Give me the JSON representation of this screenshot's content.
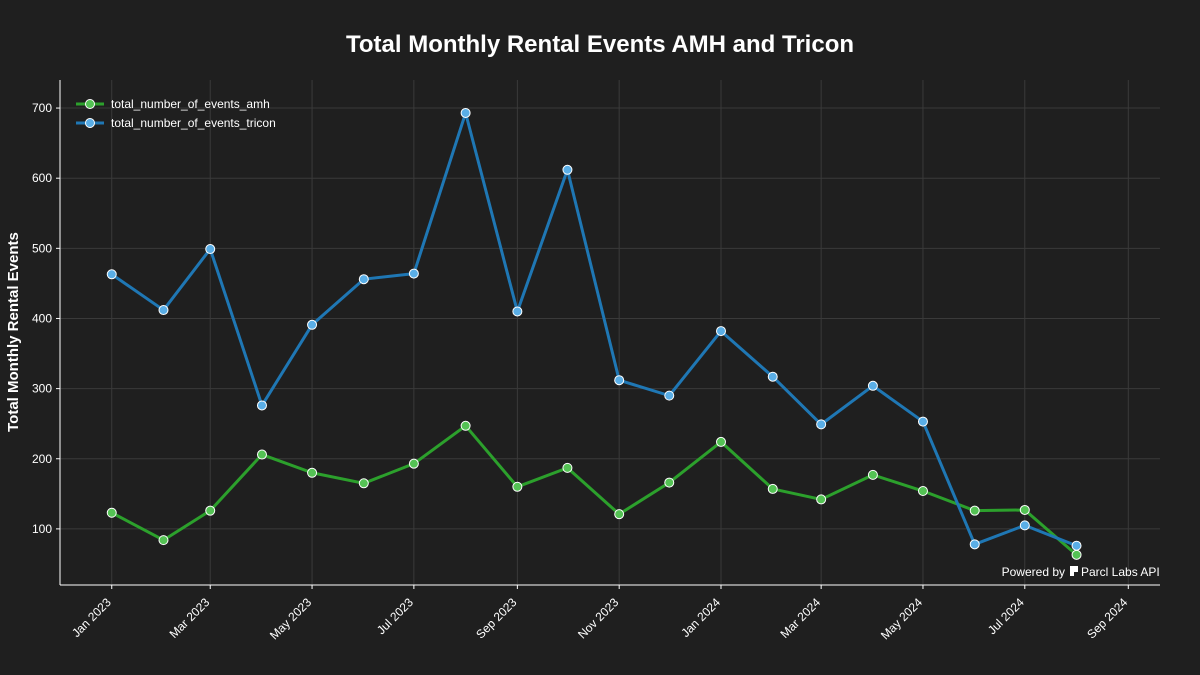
{
  "chart_data": {
    "type": "line",
    "title": "Total Monthly Rental Events AMH and Tricon",
    "xlabel": "",
    "ylabel": "Total Monthly Rental Events",
    "x_ticks": [
      "Jan 2023",
      "Mar 2023",
      "May 2023",
      "Jul 2023",
      "Sep 2023",
      "Nov 2023",
      "Jan 2024",
      "Mar 2024",
      "May 2024",
      "Jul 2024",
      "Sep 2024"
    ],
    "y_ticks": [
      100,
      200,
      300,
      400,
      500,
      600,
      700
    ],
    "xlim": [
      "2022-12-01",
      "2024-09-20"
    ],
    "ylim": [
      20,
      740
    ],
    "grid": true,
    "legend_position": "top-left",
    "x": [
      "2023-01-01",
      "2023-02-01",
      "2023-03-01",
      "2023-04-01",
      "2023-05-01",
      "2023-06-01",
      "2023-07-01",
      "2023-08-01",
      "2023-09-01",
      "2023-10-01",
      "2023-11-01",
      "2023-12-01",
      "2024-01-01",
      "2024-02-01",
      "2024-03-01",
      "2024-04-01",
      "2024-05-01",
      "2024-06-01",
      "2024-07-01",
      "2024-08-01"
    ],
    "series": [
      {
        "name": "total_number_of_events_amh",
        "color": "#2ca02c",
        "marker_fill": "#54c254",
        "values": [
          123,
          84,
          126,
          206,
          180,
          165,
          193,
          247,
          160,
          187,
          121,
          166,
          224,
          157,
          142,
          177,
          154,
          126,
          127,
          63
        ]
      },
      {
        "name": "total_number_of_events_tricon",
        "color": "#1f77b4",
        "marker_fill": "#5aaee6",
        "values": [
          463,
          412,
          499,
          276,
          391,
          456,
          464,
          693,
          410,
          612,
          312,
          290,
          382,
          317,
          249,
          304,
          253,
          78,
          105,
          76
        ]
      }
    ]
  },
  "watermark": {
    "powered_by": "Powered by",
    "brand": "Parcl Labs API"
  }
}
